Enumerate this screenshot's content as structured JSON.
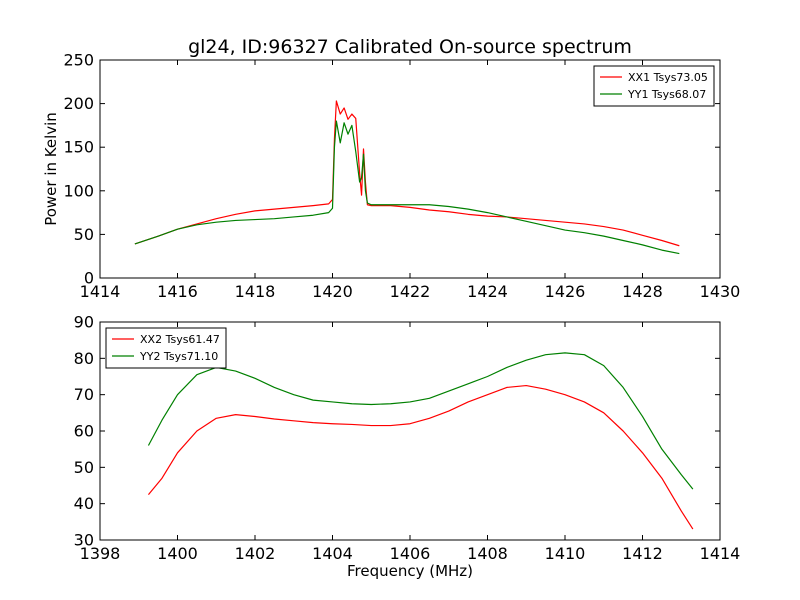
{
  "title": "gl24, ID:96327 Calibrated On-source spectrum",
  "chart_data": [
    {
      "type": "line",
      "title": "gl24, ID:96327 Calibrated On-source spectrum",
      "xlabel": "",
      "ylabel": "Power in Kelvin",
      "xlim": [
        1414,
        1430
      ],
      "ylim": [
        0,
        250
      ],
      "xticks": [
        1414,
        1416,
        1418,
        1420,
        1422,
        1424,
        1426,
        1428,
        1430
      ],
      "yticks": [
        0,
        50,
        100,
        150,
        200,
        250
      ],
      "grid": false,
      "legend_position": "top-right",
      "series": [
        {
          "name": "XX1 Tsys73.05",
          "color": "#ff0000",
          "x": [
            1414.9,
            1415.5,
            1416.0,
            1416.5,
            1417.0,
            1417.5,
            1418.0,
            1418.5,
            1419.0,
            1419.5,
            1419.9,
            1420.0,
            1420.05,
            1420.1,
            1420.2,
            1420.3,
            1420.4,
            1420.5,
            1420.6,
            1420.7,
            1420.75,
            1420.8,
            1420.85,
            1420.9,
            1421.0,
            1421.5,
            1422.0,
            1422.5,
            1423.0,
            1423.5,
            1424.0,
            1424.5,
            1425.0,
            1425.5,
            1426.0,
            1426.5,
            1427.0,
            1427.5,
            1428.0,
            1428.5,
            1428.95
          ],
          "values": [
            39,
            48,
            56,
            62,
            68,
            73,
            77,
            79,
            81,
            83,
            85,
            90,
            160,
            203,
            188,
            195,
            182,
            188,
            183,
            120,
            95,
            148,
            110,
            84,
            83,
            83,
            81,
            78,
            76,
            73,
            71,
            70,
            68,
            66,
            64,
            62,
            59,
            55,
            49,
            43,
            37
          ]
        },
        {
          "name": "YY1 Tsys68.07",
          "color": "#008000",
          "x": [
            1414.9,
            1415.5,
            1416.0,
            1416.5,
            1417.0,
            1417.5,
            1418.0,
            1418.5,
            1419.0,
            1419.5,
            1419.9,
            1420.0,
            1420.05,
            1420.1,
            1420.2,
            1420.3,
            1420.4,
            1420.5,
            1420.6,
            1420.7,
            1420.75,
            1420.8,
            1420.85,
            1420.9,
            1421.0,
            1421.5,
            1422.0,
            1422.5,
            1423.0,
            1423.5,
            1424.0,
            1424.5,
            1425.0,
            1425.5,
            1426.0,
            1426.5,
            1427.0,
            1427.5,
            1428.0,
            1428.5,
            1428.95
          ],
          "values": [
            39,
            48,
            56,
            61,
            64,
            66,
            67,
            68,
            70,
            72,
            75,
            80,
            150,
            180,
            155,
            178,
            165,
            175,
            145,
            110,
            115,
            142,
            100,
            86,
            84,
            84,
            84,
            84,
            82,
            79,
            75,
            70,
            65,
            60,
            55,
            52,
            48,
            43,
            38,
            32,
            28
          ]
        }
      ]
    },
    {
      "type": "line",
      "title": "",
      "xlabel": "Frequency (MHz)",
      "ylabel": "",
      "xlim": [
        1398,
        1414
      ],
      "ylim": [
        30,
        90
      ],
      "xticks": [
        1398,
        1400,
        1402,
        1404,
        1406,
        1408,
        1410,
        1412,
        1414
      ],
      "yticks": [
        30,
        40,
        50,
        60,
        70,
        80,
        90
      ],
      "grid": false,
      "legend_position": "top-left",
      "series": [
        {
          "name": "XX2 Tsys61.47",
          "color": "#ff0000",
          "x": [
            1399.25,
            1399.6,
            1400.0,
            1400.5,
            1401.0,
            1401.5,
            1402.0,
            1402.5,
            1403.0,
            1403.5,
            1404.0,
            1404.5,
            1405.0,
            1405.5,
            1406.0,
            1406.5,
            1407.0,
            1407.5,
            1408.0,
            1408.5,
            1409.0,
            1409.5,
            1410.0,
            1410.5,
            1411.0,
            1411.5,
            1412.0,
            1412.5,
            1413.0,
            1413.3
          ],
          "values": [
            42.5,
            47,
            54,
            60,
            63.5,
            64.5,
            64,
            63.3,
            62.8,
            62.3,
            62,
            61.8,
            61.5,
            61.5,
            62,
            63.5,
            65.5,
            68,
            70,
            72,
            72.5,
            71.5,
            70,
            68,
            65,
            60,
            54,
            47,
            38,
            33
          ]
        },
        {
          "name": "YY2 Tsys71.10",
          "color": "#008000",
          "x": [
            1399.25,
            1399.6,
            1400.0,
            1400.5,
            1401.0,
            1401.5,
            1402.0,
            1402.5,
            1403.0,
            1403.5,
            1404.0,
            1404.5,
            1405.0,
            1405.5,
            1406.0,
            1406.5,
            1407.0,
            1407.5,
            1408.0,
            1408.5,
            1409.0,
            1409.5,
            1410.0,
            1410.5,
            1411.0,
            1411.5,
            1412.0,
            1412.5,
            1413.0,
            1413.3
          ],
          "values": [
            56,
            63,
            70,
            75.5,
            77.5,
            76.5,
            74.5,
            72,
            70,
            68.5,
            68,
            67.5,
            67.3,
            67.5,
            68,
            69,
            71,
            73,
            75,
            77.5,
            79.5,
            81,
            81.5,
            81,
            78,
            72,
            64,
            55,
            48,
            44
          ]
        }
      ]
    }
  ]
}
